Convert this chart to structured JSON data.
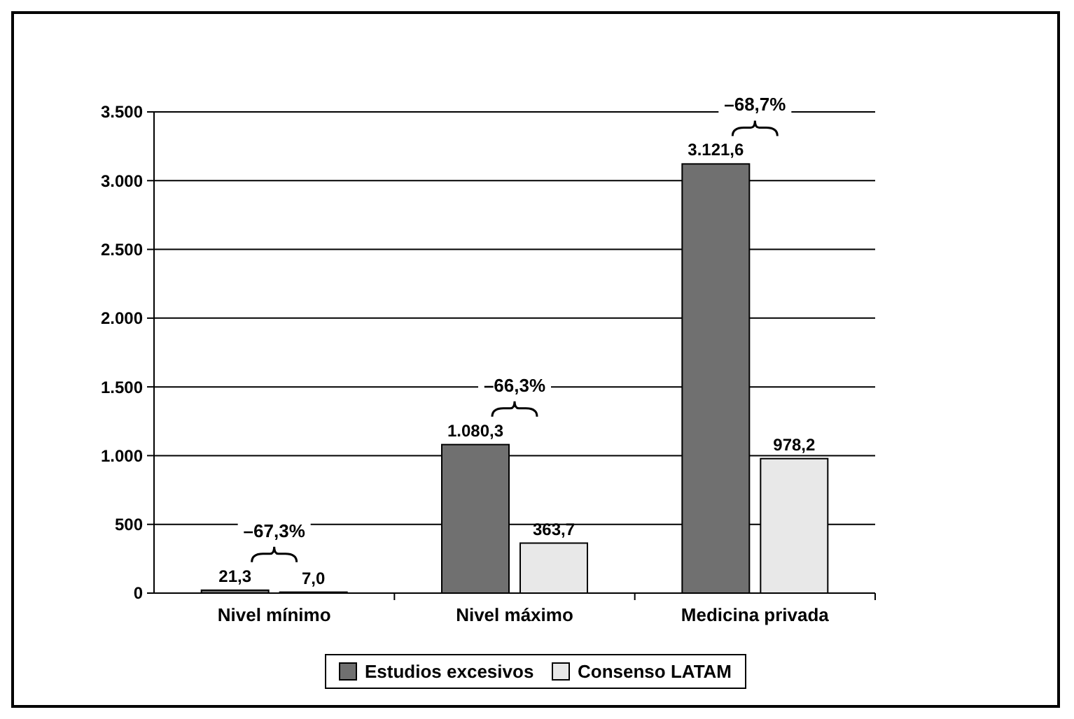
{
  "chart_data": {
    "type": "bar",
    "categories": [
      "Nivel mínimo",
      "Nivel máximo",
      "Medicina privada"
    ],
    "series": [
      {
        "name": "Estudios excesivos",
        "color": "#707070",
        "values": [
          21.3,
          1080.3,
          3121.6
        ],
        "value_labels": [
          "21,3",
          "1.080,3",
          "3.121,6"
        ]
      },
      {
        "name": "Consenso LATAM",
        "color": "#e8e8e8",
        "values": [
          7.0,
          363.7,
          978.2
        ],
        "value_labels": [
          "7,0",
          "363,7",
          "978,2"
        ]
      }
    ],
    "ylim": [
      0,
      3500
    ],
    "yticks": [
      0,
      500,
      {
        "value": 1000,
        "label": "1.000"
      },
      {
        "value": 1500,
        "label": "1.500"
      },
      {
        "value": 2000,
        "label": "2.000"
      },
      {
        "value": 2500,
        "label": "2.500"
      },
      {
        "value": 3000,
        "label": "3.000"
      },
      {
        "value": 3500,
        "label": "3.500"
      }
    ],
    "grid": "y",
    "legend": "bottom",
    "annotations": [
      {
        "text": "–67,3%",
        "x": "Nivel mínimo",
        "y": 21.3
      },
      {
        "text": "–66,3%",
        "x": "Nivel máximo",
        "y": 1080.3
      },
      {
        "text": "–68,7%",
        "x": "Medicina privada",
        "y": 3121.6
      }
    ]
  }
}
